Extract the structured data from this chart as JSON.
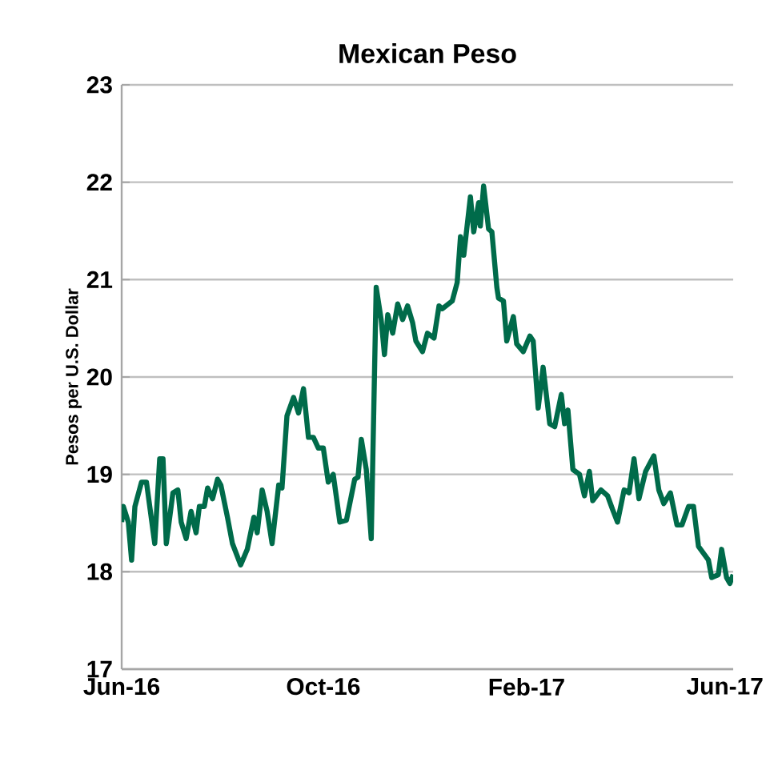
{
  "chart_data": {
    "type": "line",
    "title": "Mexican Peso",
    "ylabel": "Pesos per U.S. Dollar",
    "xlim": [
      "2016-06-01",
      "2017-06-06"
    ],
    "ylim": [
      17,
      23
    ],
    "yticks": [
      17,
      18,
      19,
      20,
      21,
      22,
      23
    ],
    "xticks": [
      {
        "value": "2016-06-01",
        "label": "Jun-16"
      },
      {
        "value": "2016-10-01",
        "label": "Oct-16"
      },
      {
        "value": "2017-02-01",
        "label": "Feb-17"
      },
      {
        "value": "2017-06-01",
        "label": "Jun-17"
      }
    ],
    "grid": "y",
    "x": [
      "2016-06-01",
      "2016-06-02",
      "2016-06-05",
      "2016-06-07",
      "2016-06-09",
      "2016-06-13",
      "2016-06-16",
      "2016-06-21",
      "2016-06-24",
      "2016-06-26",
      "2016-06-28",
      "2016-07-02",
      "2016-07-05",
      "2016-07-07",
      "2016-07-10",
      "2016-07-13",
      "2016-07-16",
      "2016-07-18",
      "2016-07-21",
      "2016-07-23",
      "2016-07-26",
      "2016-07-29",
      "2016-07-31",
      "2016-08-04",
      "2016-08-07",
      "2016-08-12",
      "2016-08-16",
      "2016-08-20",
      "2016-08-22",
      "2016-08-25",
      "2016-08-28",
      "2016-08-31",
      "2016-09-04",
      "2016-09-06",
      "2016-09-09",
      "2016-09-13",
      "2016-09-16",
      "2016-09-19",
      "2016-09-22",
      "2016-09-25",
      "2016-09-28",
      "2016-10-01",
      "2016-10-04",
      "2016-10-07",
      "2016-10-11",
      "2016-10-15",
      "2016-10-20",
      "2016-10-22",
      "2016-10-24",
      "2016-10-27",
      "2016-10-30",
      "2016-11-02",
      "2016-11-05",
      "2016-11-07",
      "2016-11-09",
      "2016-11-12",
      "2016-11-15",
      "2016-11-18",
      "2016-11-21",
      "2016-11-24",
      "2016-11-26",
      "2016-11-30",
      "2016-12-03",
      "2016-12-07",
      "2016-12-10",
      "2016-12-12",
      "2016-12-18",
      "2016-12-21",
      "2016-12-23",
      "2016-12-25",
      "2016-12-29",
      "2016-12-31",
      "2017-01-03",
      "2017-01-04",
      "2017-01-06",
      "2017-01-09",
      "2017-01-11",
      "2017-01-14",
      "2017-01-15",
      "2017-01-18",
      "2017-01-20",
      "2017-01-24",
      "2017-01-26",
      "2017-01-30",
      "2017-02-03",
      "2017-02-05",
      "2017-02-08",
      "2017-02-11",
      "2017-02-15",
      "2017-02-18",
      "2017-02-22",
      "2017-02-24",
      "2017-02-26",
      "2017-03-01",
      "2017-03-05",
      "2017-03-08",
      "2017-03-11",
      "2017-03-13",
      "2017-03-18",
      "2017-03-22",
      "2017-03-25",
      "2017-03-28",
      "2017-04-01",
      "2017-04-04",
      "2017-04-07",
      "2017-04-10",
      "2017-04-14",
      "2017-04-19",
      "2017-04-22",
      "2017-04-25",
      "2017-04-29",
      "2017-05-03",
      "2017-05-06",
      "2017-05-10",
      "2017-05-13",
      "2017-05-16",
      "2017-05-22",
      "2017-05-24",
      "2017-05-28",
      "2017-05-30",
      "2017-06-02",
      "2017-06-04",
      "2017-06-06"
    ],
    "series": [
      {
        "color": "#006b4a",
        "values": [
          18.51,
          18.67,
          18.51,
          18.12,
          18.67,
          18.92,
          18.92,
          18.29,
          19.16,
          19.16,
          18.29,
          18.81,
          18.84,
          18.51,
          18.34,
          18.62,
          18.4,
          18.67,
          18.67,
          18.86,
          18.75,
          18.95,
          18.89,
          18.56,
          18.29,
          18.07,
          18.23,
          18.56,
          18.4,
          18.84,
          18.62,
          18.29,
          18.89,
          18.86,
          19.6,
          19.79,
          19.63,
          19.88,
          19.38,
          19.38,
          19.27,
          19.27,
          18.92,
          19.0,
          18.51,
          18.53,
          18.95,
          18.97,
          19.36,
          19.05,
          18.34,
          20.92,
          20.59,
          20.23,
          20.64,
          20.45,
          20.75,
          20.59,
          20.73,
          20.56,
          20.37,
          20.26,
          20.45,
          20.4,
          20.73,
          20.7,
          20.78,
          20.97,
          21.44,
          21.25,
          21.85,
          21.49,
          21.79,
          21.55,
          21.96,
          21.52,
          21.49,
          20.92,
          20.81,
          20.78,
          20.37,
          20.62,
          20.34,
          20.26,
          20.42,
          20.37,
          19.68,
          20.1,
          19.52,
          19.49,
          19.82,
          19.52,
          19.66,
          19.05,
          19.0,
          18.78,
          19.03,
          18.73,
          18.84,
          18.78,
          18.64,
          18.51,
          18.84,
          18.81,
          19.16,
          18.75,
          19.03,
          19.19,
          18.84,
          18.7,
          18.81,
          18.48,
          18.48,
          18.67,
          18.67,
          18.26,
          18.12,
          17.94,
          17.97,
          18.23,
          17.94,
          17.88,
          17.97
        ]
      }
    ]
  }
}
